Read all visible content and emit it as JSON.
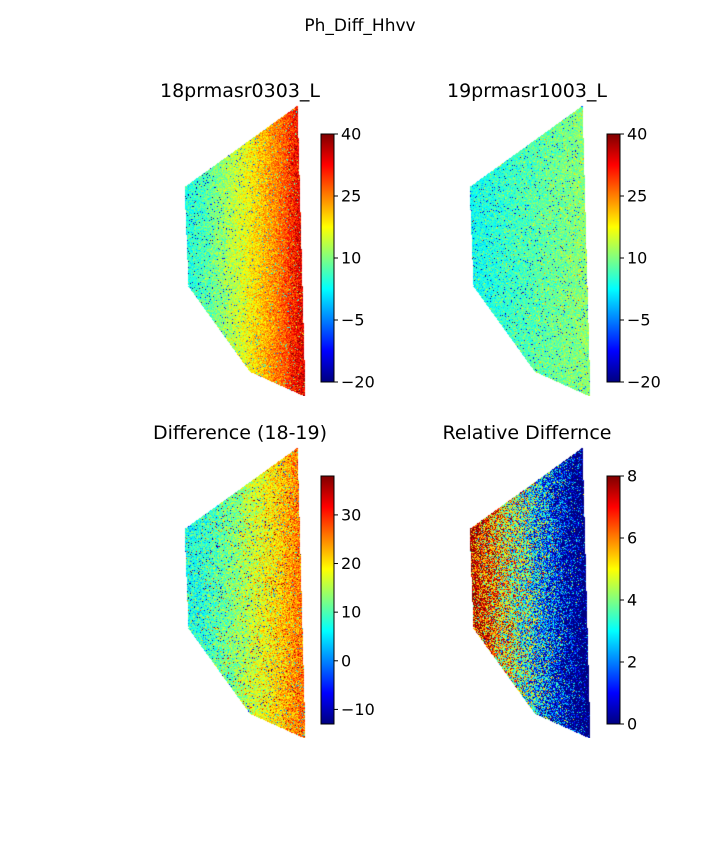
{
  "figure": {
    "suptitle": "Ph_Diff_Hhvv"
  },
  "chart_data": [
    {
      "type": "heatmap",
      "title": "18prmasr0303_L",
      "colormap": "jet",
      "clim": [
        -20,
        40
      ],
      "colorbar_ticks": [
        40,
        25,
        10,
        -5,
        -20
      ],
      "colorbar_tick_labels": [
        "40",
        "25",
        "10",
        "−5",
        "−20"
      ],
      "pattern": "east-west gradient: ~5 (cyan) on west edge rising to ~35–40 (orange-red) on east edge"
    },
    {
      "type": "heatmap",
      "title": "19prmasr1003_L",
      "colormap": "jet",
      "clim": [
        -20,
        40
      ],
      "colorbar_ticks": [
        40,
        25,
        10,
        -5,
        -20
      ],
      "colorbar_tick_labels": [
        "40",
        "25",
        "10",
        "−5",
        "−20"
      ],
      "pattern": "mostly ~0–10 (blue to cyan), slightly higher toward the east"
    },
    {
      "type": "heatmap",
      "title": "Difference (18-19)",
      "colormap": "jet",
      "clim": [
        -13,
        38
      ],
      "colorbar_ticks": [
        30,
        20,
        10,
        0,
        -10
      ],
      "colorbar_tick_labels": [
        "30",
        "20",
        "10",
        "0",
        "−10"
      ],
      "pattern": "~5–10 (cyan) on west rising to ~25–35 (yellow-orange) on east"
    },
    {
      "type": "heatmap",
      "title": "Relative Differnce",
      "colormap": "jet",
      "clim": [
        0,
        8
      ],
      "colorbar_ticks": [
        8,
        6,
        4,
        2,
        0
      ],
      "colorbar_tick_labels": [
        "8",
        "6",
        "4",
        "2",
        "0"
      ],
      "pattern": "high (~5–8, yellow-red, noisy) on west edge decreasing to ~0–1 (blue) on east"
    }
  ]
}
